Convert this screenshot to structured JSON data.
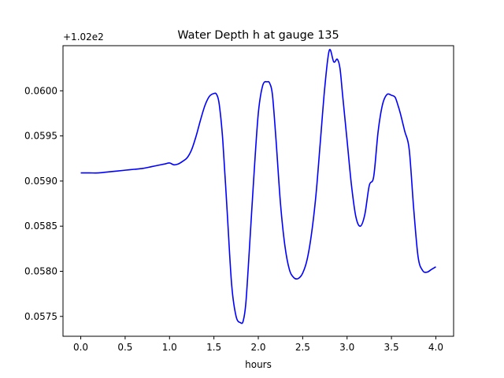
{
  "chart_data": {
    "type": "line",
    "title": "Water Depth h at gauge 135",
    "xlabel": "hours",
    "ylabel": "",
    "y_offset_label": "+1.02e2",
    "y_offset": 102,
    "xlim": [
      -0.2,
      4.2
    ],
    "ylim": [
      0.05728,
      0.0605
    ],
    "xticks": [
      0.0,
      0.5,
      1.0,
      1.5,
      2.0,
      2.5,
      3.0,
      3.5,
      4.0
    ],
    "xtick_labels": [
      "0.0",
      "0.5",
      "1.0",
      "1.5",
      "2.0",
      "2.5",
      "3.0",
      "3.5",
      "4.0"
    ],
    "yticks": [
      0.0575,
      0.058,
      0.0585,
      0.059,
      0.0595,
      0.06
    ],
    "ytick_labels": [
      "0.0575",
      "0.0580",
      "0.0585",
      "0.0590",
      "0.0595",
      "0.0600"
    ],
    "grid": false,
    "legend": "none",
    "series": [
      {
        "color": "#0000ff",
        "x": [
          0.0,
          0.1,
          0.2,
          0.3,
          0.4,
          0.5,
          0.6,
          0.7,
          0.8,
          0.9,
          0.95,
          1.0,
          1.05,
          1.1,
          1.15,
          1.2,
          1.25,
          1.3,
          1.35,
          1.4,
          1.45,
          1.5,
          1.53,
          1.56,
          1.6,
          1.65,
          1.7,
          1.75,
          1.8,
          1.83,
          1.86,
          1.9,
          1.95,
          2.0,
          2.05,
          2.1,
          2.13,
          2.16,
          2.2,
          2.25,
          2.3,
          2.35,
          2.4,
          2.45,
          2.5,
          2.55,
          2.6,
          2.65,
          2.7,
          2.75,
          2.8,
          2.85,
          2.89,
          2.92,
          2.95,
          3.0,
          3.05,
          3.1,
          3.15,
          3.2,
          3.25,
          3.3,
          3.35,
          3.4,
          3.45,
          3.5,
          3.54,
          3.57,
          3.6,
          3.65,
          3.7,
          3.75,
          3.8,
          3.85,
          3.9,
          3.95,
          4.0
        ],
        "y": [
          0.05909,
          0.05909,
          0.05909,
          0.0591,
          0.05911,
          0.05912,
          0.05913,
          0.05914,
          0.05916,
          0.05918,
          0.05919,
          0.0592,
          0.05918,
          0.05919,
          0.05922,
          0.05926,
          0.05935,
          0.0595,
          0.05968,
          0.05984,
          0.05994,
          0.05997,
          0.05996,
          0.05985,
          0.05945,
          0.05865,
          0.05785,
          0.0575,
          0.05743,
          0.05745,
          0.05765,
          0.05825,
          0.05905,
          0.05975,
          0.06006,
          0.0601,
          0.06008,
          0.05995,
          0.05945,
          0.05875,
          0.05828,
          0.05802,
          0.05793,
          0.05792,
          0.05798,
          0.05813,
          0.05842,
          0.05885,
          0.05945,
          0.06005,
          0.06045,
          0.06032,
          0.06035,
          0.06025,
          0.05995,
          0.05945,
          0.05895,
          0.0586,
          0.0585,
          0.05863,
          0.05895,
          0.05905,
          0.05955,
          0.05985,
          0.05996,
          0.05995,
          0.05993,
          0.05985,
          0.05975,
          0.05955,
          0.05935,
          0.0587,
          0.05816,
          0.05801,
          0.05799,
          0.05802,
          0.05805
        ]
      }
    ]
  }
}
